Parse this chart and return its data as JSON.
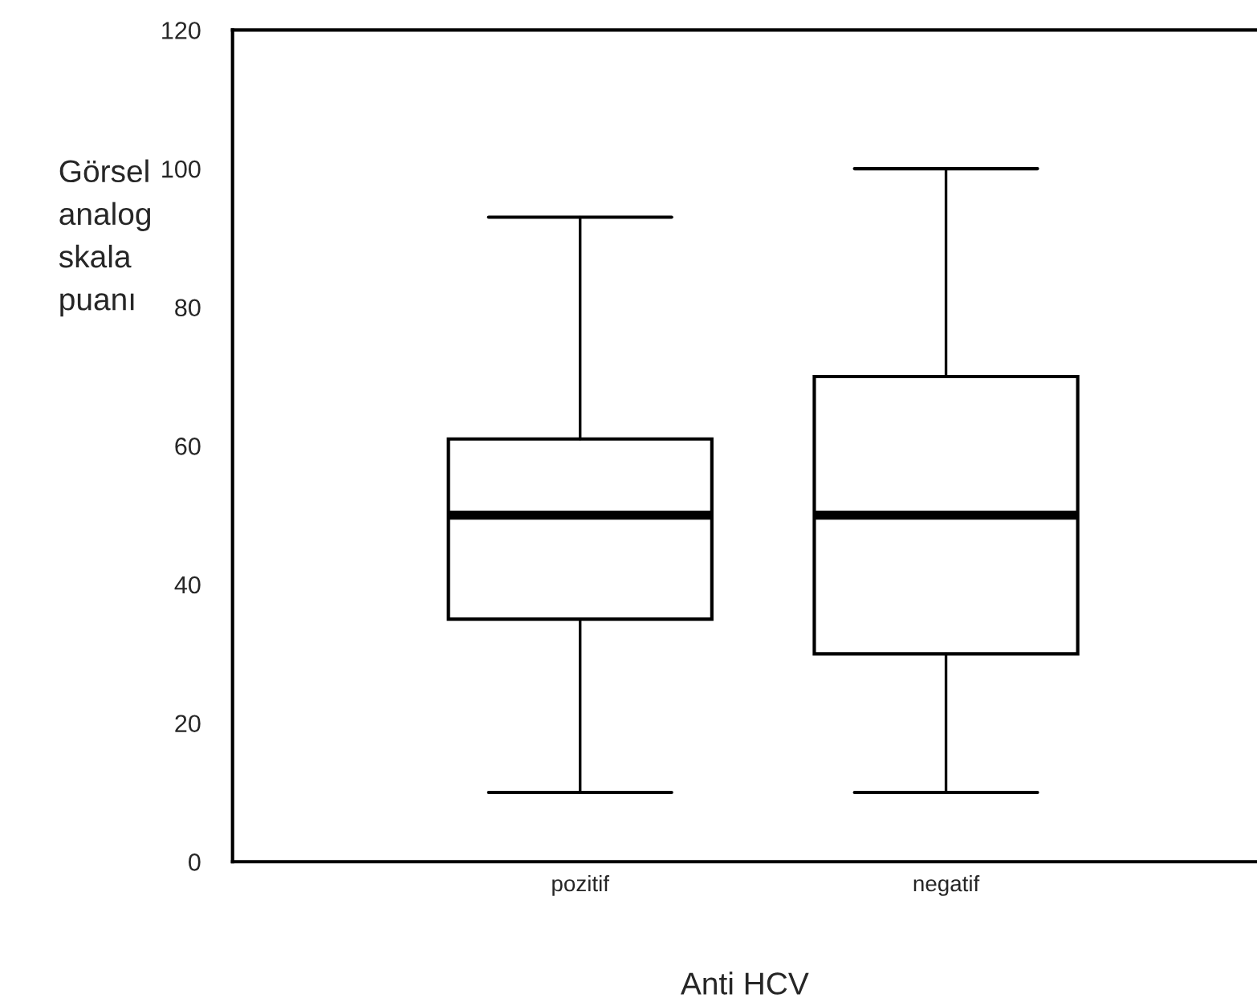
{
  "chart_data": {
    "type": "box",
    "xlabel": "Anti HCV",
    "ylabel": "Görsel\nanalog\nskala\npuanı",
    "categories": [
      "pozitif",
      "negatif"
    ],
    "boxes": [
      {
        "low": 10,
        "q1": 35,
        "median": 50,
        "q3": 61,
        "high": 93
      },
      {
        "low": 10,
        "q1": 30,
        "median": 50,
        "q3": 70,
        "high": 100
      }
    ],
    "ylim": [
      0,
      120
    ],
    "yticks": [
      0,
      20,
      40,
      60,
      80,
      100,
      120
    ],
    "grid": false
  }
}
